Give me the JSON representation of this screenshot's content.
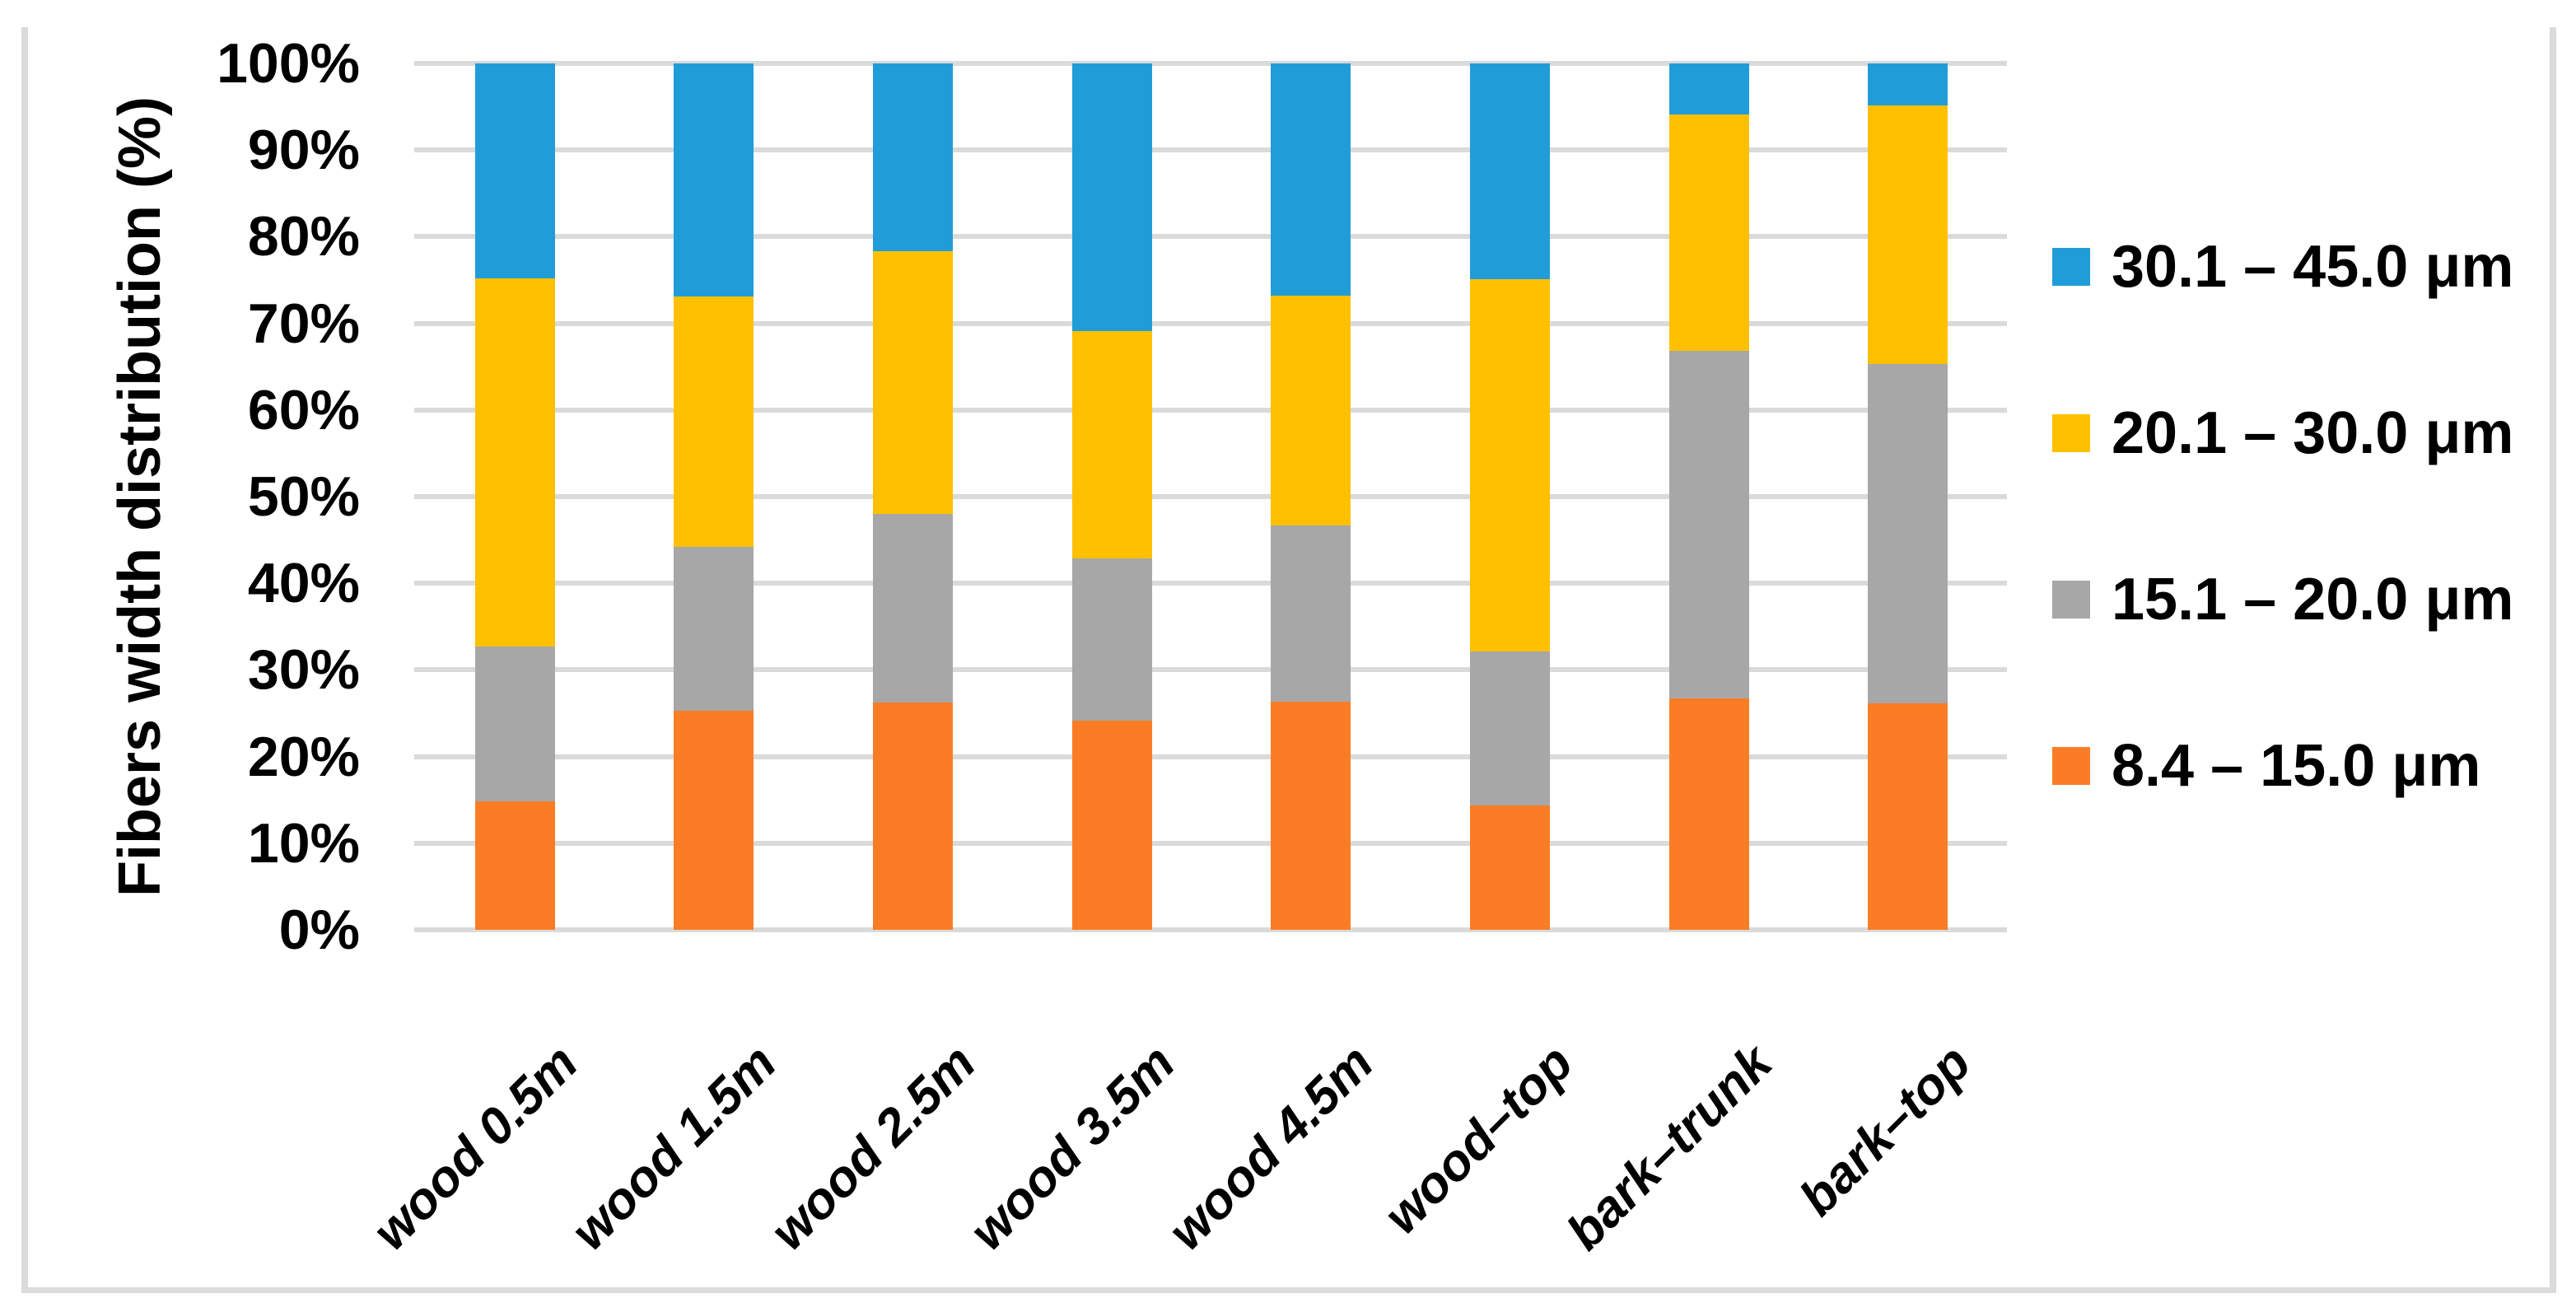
{
  "chart_data": {
    "type": "bar",
    "subtype": "stacked-100-percent-column",
    "title": "",
    "ylabel": "Fibers width distribution (%)",
    "xlabel": "",
    "ylim": [
      0,
      100
    ],
    "y_ticks": [
      0,
      10,
      20,
      30,
      40,
      50,
      60,
      70,
      80,
      90,
      100
    ],
    "y_tick_suffix": "%",
    "grid": true,
    "legend_position": "right",
    "categories": [
      "wood 0.5m",
      "wood 1.5m",
      "wood 2.5m",
      "wood 3.5m",
      "wood 4.5m",
      "wood–top",
      "bark–trunk",
      "bark–top"
    ],
    "series": [
      {
        "name": "8.4 – 15.0 μm",
        "color": "#FA7D26",
        "values": [
          14.8,
          25.3,
          26.2,
          24.1,
          26.3,
          14.4,
          26.7,
          26.1
        ]
      },
      {
        "name": "15.1 – 20.0 μm",
        "color": "#A7A7A7",
        "values": [
          17.9,
          18.9,
          21.8,
          18.8,
          20.4,
          17.7,
          40.1,
          39.2
        ]
      },
      {
        "name": "20.1 – 30.0 μm",
        "color": "#FFC000",
        "values": [
          42.5,
          28.9,
          30.3,
          26.2,
          26.5,
          43.0,
          27.3,
          29.9
        ]
      },
      {
        "name": "30.1 – 45.0 μm",
        "color": "#209DD8",
        "values": [
          24.8,
          26.9,
          21.7,
          30.9,
          26.8,
          24.9,
          5.9,
          4.8
        ]
      }
    ],
    "stack_order_bottom_to_top": [
      "8.4 – 15.0 μm",
      "15.1 – 20.0 μm",
      "20.1 – 30.0 μm",
      "30.1 – 45.0 μm"
    ],
    "legend_order_top_to_bottom": [
      "30.1 – 45.0 μm",
      "20.1 – 30.0 μm",
      "15.1 – 20.0 μm",
      "8.4 – 15.0 μm"
    ]
  },
  "colors": {
    "gridline": "#DADADA",
    "frame": "#DBDBDB",
    "text": "#000000",
    "background": "#FFFFFF"
  }
}
